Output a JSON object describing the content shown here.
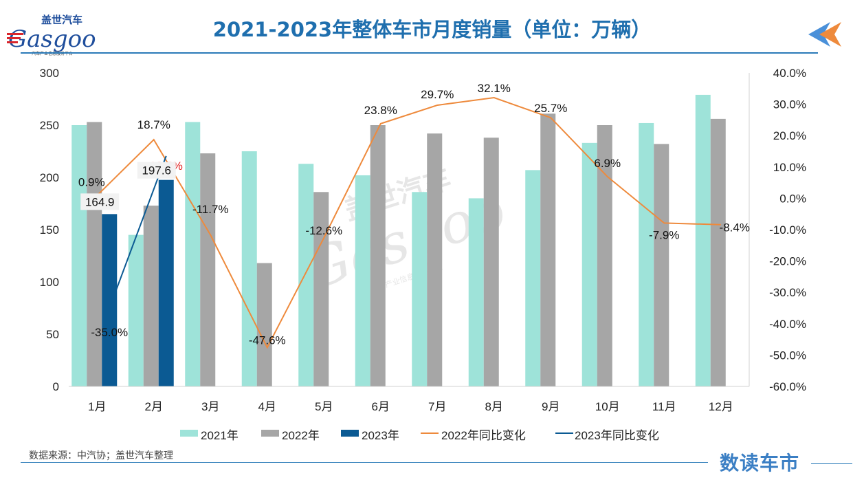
{
  "header": {
    "logo_cn": "盖世汽车",
    "logo_en": "Gasgoo",
    "logo_tagline": "汽车产业信息服务平台",
    "title": "2021-2023年整体车市月度销量（单位：万辆）"
  },
  "footer": {
    "source": "数据来源：中汽协；盖世汽车整理",
    "brand": "数读车市"
  },
  "colors": {
    "bar2021": "#9ee3d9",
    "bar2022": "#a6a6a6",
    "bar2023": "#0b5a93",
    "line2022": "#ee8a3c",
    "line2023": "#0b5a93",
    "title": "#1f6fae"
  },
  "chart_data": {
    "type": "bar",
    "categories": [
      "1月",
      "2月",
      "3月",
      "4月",
      "5月",
      "6月",
      "7月",
      "8月",
      "9月",
      "10月",
      "11月",
      "12月"
    ],
    "series": [
      {
        "name": "2021年",
        "axis": "left",
        "values": [
          250,
          145,
          253,
          225,
          213,
          202,
          186,
          180,
          207,
          233,
          252,
          279
        ]
      },
      {
        "name": "2022年",
        "axis": "left",
        "values": [
          253,
          173,
          223,
          118,
          186,
          250,
          242,
          238,
          261,
          250,
          232,
          256
        ]
      },
      {
        "name": "2023年",
        "axis": "left",
        "values": [
          164.9,
          197.6,
          null,
          null,
          null,
          null,
          null,
          null,
          null,
          null,
          null,
          null
        ],
        "data_labels": [
          "164.9",
          "197.6"
        ]
      },
      {
        "name": "2022年同比变化",
        "type": "line",
        "axis": "right",
        "values": [
          0.9,
          18.7,
          -11.7,
          -47.6,
          -12.6,
          23.8,
          29.7,
          32.1,
          25.7,
          6.9,
          -7.9,
          -8.4
        ],
        "data_labels": [
          "0.9%",
          "18.7%",
          "-11.7%",
          "-47.6%",
          "-12.6%",
          "23.8%",
          "29.7%",
          "32.1%",
          "25.7%",
          "6.9%",
          "-7.9%",
          "-8.4%"
        ]
      },
      {
        "name": "2023年同比变化",
        "type": "line",
        "axis": "right",
        "values": [
          -35.0,
          13.5,
          null,
          null,
          null,
          null,
          null,
          null,
          null,
          null,
          null,
          null
        ],
        "data_labels": [
          "-35.0%",
          "13.5%"
        ]
      }
    ],
    "left_axis": {
      "min": 0,
      "max": 300,
      "ticks": [
        "0",
        "50",
        "100",
        "150",
        "200",
        "250",
        "300"
      ]
    },
    "right_axis": {
      "min": -60,
      "max": 40,
      "ticks": [
        "-60.0%",
        "-50.0%",
        "-40.0%",
        "-30.0%",
        "-20.0%",
        "-10.0%",
        "0.0%",
        "10.0%",
        "20.0%",
        "30.0%",
        "40.0%"
      ]
    },
    "legend_position": "bottom",
    "grid": false,
    "watermark": {
      "cn": "盖世汽车",
      "en": "Gasgoo",
      "tagline": "汽车产业信息服务平台"
    }
  }
}
